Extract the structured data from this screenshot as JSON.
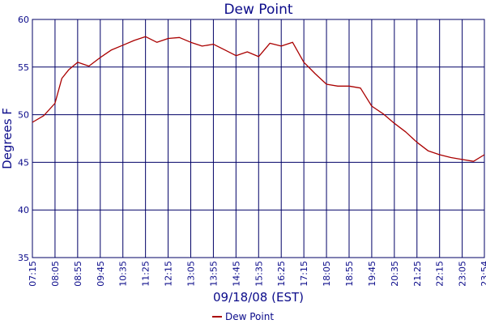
{
  "chart_data": {
    "type": "line",
    "title": "Dew Point",
    "xlabel": "09/18/08 (EST)",
    "ylabel": "Degrees F",
    "ylim": [
      35,
      60
    ],
    "yticks": [
      35,
      40,
      45,
      50,
      55,
      60
    ],
    "xticks": [
      "07:15",
      "08:05",
      "08:55",
      "09:45",
      "10:35",
      "11:25",
      "12:15",
      "13:05",
      "13:55",
      "14:45",
      "15:35",
      "16:25",
      "17:15",
      "18:05",
      "18:55",
      "19:45",
      "20:35",
      "21:25",
      "22:15",
      "23:05",
      "23:54"
    ],
    "grid": true,
    "legend_position": "bottom-center",
    "colors": {
      "line": "#aa0000",
      "grid": "#000066",
      "text": "#0b0b8a"
    },
    "series": [
      {
        "name": "Dew Point",
        "x": [
          "07:15",
          "07:40",
          "08:05",
          "08:20",
          "08:35",
          "08:55",
          "09:20",
          "09:45",
          "10:10",
          "10:35",
          "11:00",
          "11:25",
          "11:50",
          "12:15",
          "12:40",
          "13:05",
          "13:30",
          "13:55",
          "14:20",
          "14:45",
          "15:10",
          "15:35",
          "16:00",
          "16:25",
          "16:50",
          "17:15",
          "17:40",
          "18:05",
          "18:30",
          "18:55",
          "19:20",
          "19:45",
          "20:10",
          "20:35",
          "21:00",
          "21:25",
          "21:50",
          "22:15",
          "22:40",
          "23:05",
          "23:30",
          "23:54"
        ],
        "values": [
          49.2,
          49.9,
          51.2,
          53.8,
          54.7,
          55.5,
          55.1,
          56.0,
          56.8,
          57.3,
          57.8,
          58.2,
          57.6,
          58.0,
          58.1,
          57.6,
          57.2,
          57.4,
          56.8,
          56.2,
          56.6,
          56.1,
          57.5,
          57.2,
          57.6,
          55.5,
          54.3,
          53.2,
          53.0,
          53.0,
          52.8,
          50.9,
          50.1,
          49.1,
          48.2,
          47.1,
          46.2,
          45.8,
          45.5,
          45.3,
          45.1,
          45.8
        ]
      }
    ]
  }
}
